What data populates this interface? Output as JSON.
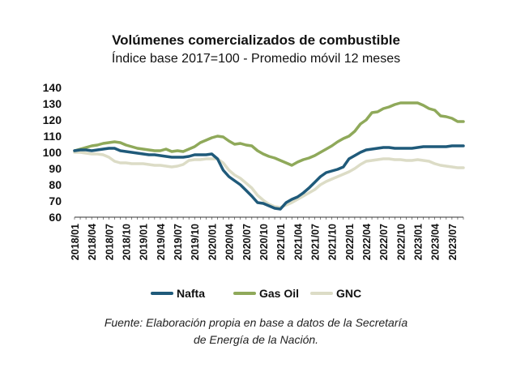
{
  "chart_data": {
    "type": "line",
    "title": "Volúmenes comercializados de combustible",
    "subtitle": "Índice base 2017=100 - Promedio móvil 12 meses",
    "ylim": [
      60,
      140
    ],
    "yticks": [
      60,
      70,
      80,
      90,
      100,
      110,
      120,
      130,
      140
    ],
    "grid": false,
    "legend": "bottom",
    "x": [
      "2018/01",
      "2018/02",
      "2018/03",
      "2018/04",
      "2018/05",
      "2018/06",
      "2018/07",
      "2018/08",
      "2018/09",
      "2018/10",
      "2018/11",
      "2018/12",
      "2019/01",
      "2019/02",
      "2019/03",
      "2019/04",
      "2019/05",
      "2019/06",
      "2019/07",
      "2019/08",
      "2019/09",
      "2019/10",
      "2019/11",
      "2019/12",
      "2020/01",
      "2020/02",
      "2020/03",
      "2020/04",
      "2020/05",
      "2020/06",
      "2020/07",
      "2020/08",
      "2020/09",
      "2020/10",
      "2020/11",
      "2020/12",
      "2021/01",
      "2021/02",
      "2021/03",
      "2021/04",
      "2021/05",
      "2021/06",
      "2021/07",
      "2021/08",
      "2021/09",
      "2021/10",
      "2021/11",
      "2021/12",
      "2022/01",
      "2022/02",
      "2022/03",
      "2022/04",
      "2022/05",
      "2022/06",
      "2022/07",
      "2022/08",
      "2022/09",
      "2022/10",
      "2022/11",
      "2022/12",
      "2023/01",
      "2023/02",
      "2023/03",
      "2023/04",
      "2023/05",
      "2023/06",
      "2023/07",
      "2023/08",
      "2023/09"
    ],
    "xtick_labels": [
      "2018/01",
      "2018/04",
      "2018/07",
      "2018/10",
      "2019/01",
      "2019/04",
      "2019/07",
      "2019/10",
      "2020/01",
      "2020/04",
      "2020/07",
      "2020/10",
      "2021/01",
      "2021/04",
      "2021/07",
      "2021/10",
      "2022/01",
      "2022/04",
      "2022/07",
      "2022/10",
      "2023/01",
      "2023/04",
      "2023/07"
    ],
    "series": [
      {
        "name": "Nafta",
        "color": "#1f5a7a",
        "values": [
          101,
          101.5,
          101.5,
          101,
          101.5,
          102,
          102.5,
          102.5,
          101,
          100.5,
          100,
          99.5,
          99,
          98.5,
          98.5,
          98,
          97.5,
          97,
          97,
          97,
          97.5,
          98.5,
          98.5,
          98.5,
          99,
          96,
          89,
          85,
          82.5,
          80,
          76.5,
          73,
          69,
          68.5,
          67,
          65.5,
          65,
          69,
          71,
          72.5,
          75,
          78,
          81.5,
          85,
          87.5,
          88.5,
          89.5,
          91,
          96,
          98,
          100,
          101.5,
          102,
          102.5,
          103,
          103,
          102.5,
          102.5,
          102.5,
          102.5,
          103,
          103.5,
          103.5,
          103.5,
          103.5,
          103.5,
          104,
          104,
          104
        ]
      },
      {
        "name": "Gas Oil",
        "color": "#8fa95a",
        "values": [
          101,
          102,
          103,
          104,
          104.5,
          105.5,
          106,
          106.5,
          106,
          104.5,
          103.5,
          102.5,
          102,
          101.5,
          101,
          101,
          102,
          100.5,
          101,
          100.5,
          102,
          103.5,
          106,
          107.5,
          109,
          110,
          109.5,
          107,
          105,
          105.5,
          104.5,
          104,
          101,
          99,
          97.5,
          96.5,
          95,
          93.5,
          92,
          94,
          95.5,
          96.5,
          98,
          100,
          102,
          104,
          106.5,
          108.5,
          110,
          113,
          117.5,
          120,
          124.5,
          125,
          127,
          128,
          129.5,
          130.5,
          130.5,
          130.5,
          130.5,
          129,
          127,
          126,
          122.5,
          122,
          121,
          119,
          119
        ]
      },
      {
        "name": "GNC",
        "color": "#dcdcc6",
        "values": [
          100,
          100,
          99.5,
          99,
          99,
          98.5,
          97,
          94.5,
          93.5,
          93.5,
          93,
          93,
          93,
          92.5,
          92,
          92,
          91.5,
          91,
          91.5,
          92.5,
          95,
          95.5,
          95.5,
          96,
          96,
          96,
          93.5,
          89,
          86,
          84,
          81,
          78,
          73.5,
          70.5,
          68,
          66.5,
          66,
          67.5,
          69,
          71,
          73,
          75,
          77,
          80,
          82,
          83.5,
          85,
          86.5,
          88,
          90,
          92.5,
          94.5,
          95,
          95.5,
          96,
          96,
          95.5,
          95.5,
          95,
          95,
          95.5,
          95,
          94.5,
          93,
          92,
          91.5,
          91,
          90.5,
          90.5
        ]
      }
    ]
  },
  "source": {
    "line1": "Fuente: Elaboración propia en base a datos de la Secretaría",
    "line2": "de Energía de la Nación."
  }
}
